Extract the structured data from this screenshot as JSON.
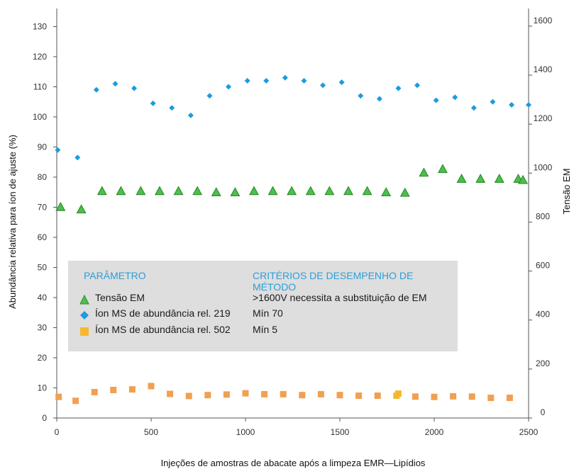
{
  "chart_data": {
    "type": "scatter",
    "xlabel": "Injeções de amostras de abacate após a limpeza EMR—Lipídios",
    "ylabel": "Abundância relativa para íon de ajuste (%)",
    "y2label": "Tensão  EM",
    "xlim": [
      0,
      2500
    ],
    "ylim": [
      0,
      136
    ],
    "y2lim": [
      0,
      1672
    ],
    "x_ticks": [
      0,
      500,
      1000,
      1500,
      2000,
      2500
    ],
    "y_ticks": [
      0,
      10,
      20,
      30,
      40,
      50,
      60,
      70,
      80,
      90,
      100,
      110,
      120,
      130
    ],
    "y2_ticks": [
      0,
      200,
      400,
      600,
      800,
      1000,
      1200,
      1400,
      1600
    ],
    "grid": false,
    "colors": {
      "ion219": "#1b9be0",
      "ion502": "#f0a050",
      "ion502_alt": "#f5b830",
      "em_fill": "#4bc04b",
      "em_stroke": "#2f8f2f",
      "legend_heading": "#2a9fd8",
      "legend_bg": "#dedede"
    },
    "legend": {
      "placement": "center-left",
      "param_heading": "PARÂMETRO",
      "criteria_heading": "CRITÉRIOS DE DESEMPENHO DE MÉTODO",
      "items": [
        {
          "symbol": "triangle",
          "label": "Tensão EM",
          "criteria": ">1600V necessita a substituição de EM"
        },
        {
          "symbol": "diamond",
          "label": "Íon MS de abundância rel. 219",
          "criteria": "Mín 70"
        },
        {
          "symbol": "square",
          "label": "Íon MS de abundância rel. 502",
          "criteria": "Mín 5"
        }
      ]
    },
    "series": [
      {
        "marker": "diamond",
        "axis": "left",
        "x": [
          5,
          110,
          210,
          310,
          410,
          510,
          610,
          710,
          810,
          910,
          1010,
          1110,
          1210,
          1310,
          1410,
          1510,
          1610,
          1710,
          1810,
          1910,
          2010,
          2110,
          2210,
          2310,
          2410,
          2500
        ],
        "y": [
          89,
          86.5,
          109,
          111,
          109.5,
          104.5,
          103,
          100.5,
          107,
          110,
          112,
          112,
          113,
          112,
          110.5,
          111.5,
          107,
          106,
          109.5,
          110.5,
          105.5,
          106.5,
          103,
          105,
          104,
          104
        ]
      },
      {
        "marker": "triangle",
        "axis": "right",
        "x": [
          20,
          130,
          240,
          340,
          445,
          545,
          645,
          745,
          845,
          945,
          1045,
          1145,
          1245,
          1345,
          1445,
          1545,
          1645,
          1745,
          1845,
          1945,
          2045,
          2145,
          2245,
          2345,
          2445,
          2470
        ],
        "y": [
          860,
          850,
          925,
          925,
          925,
          925,
          925,
          925,
          920,
          920,
          925,
          925,
          925,
          925,
          925,
          925,
          925,
          920,
          918,
          1000,
          1015,
          975,
          975,
          975,
          975,
          970
        ]
      },
      {
        "marker": "square",
        "axis": "left",
        "x": [
          10,
          100,
          200,
          300,
          400,
          500,
          600,
          700,
          800,
          900,
          1000,
          1100,
          1200,
          1300,
          1400,
          1500,
          1600,
          1700,
          1800,
          1810,
          1900,
          2000,
          2100,
          2200,
          2300,
          2400
        ],
        "y": [
          7,
          5.7,
          8.6,
          9.3,
          9.5,
          10.6,
          8,
          7.3,
          7.6,
          7.8,
          8.2,
          7.9,
          7.9,
          7.6,
          7.9,
          7.6,
          7.4,
          7.4,
          7.4,
          8.1,
          7.1,
          7.0,
          7.2,
          7.1,
          6.7,
          6.7
        ]
      }
    ]
  }
}
